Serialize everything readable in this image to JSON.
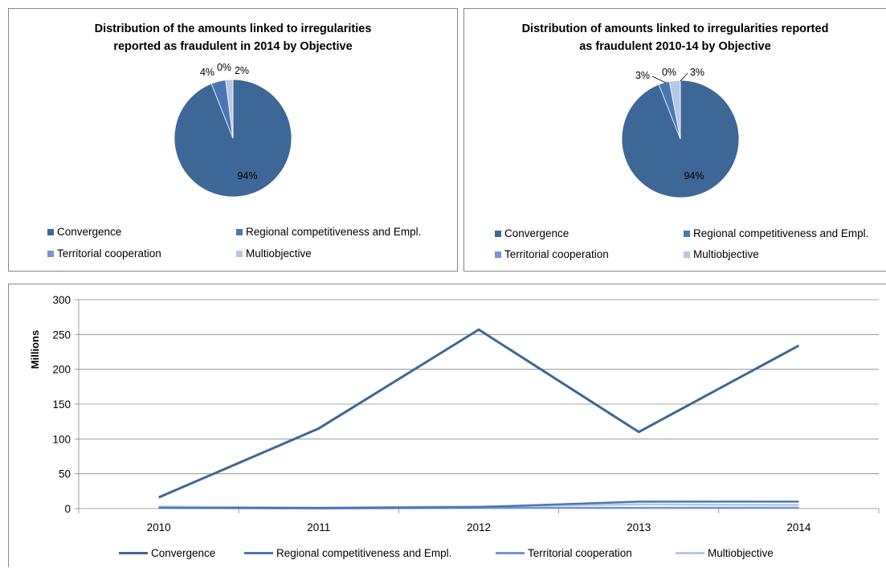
{
  "colors": {
    "convergence": "#3d6797",
    "regional": "#4a77b4",
    "territorial": "#7396cf",
    "multiobjective": "#b5c8e6"
  },
  "pie1": {
    "title_line1": "Distribution of the amounts linked to irregularities",
    "title_line2": "reported as fraudulent in 2014 by Objective"
  },
  "pie2": {
    "title_line1": "Distribution of amounts linked to irregularities reported",
    "title_line2": "as fraudulent 2010-14 by Objective"
  },
  "legend": {
    "convergence": "Convergence",
    "regional": "Regional competitiveness and Empl.",
    "territorial": "Territorial cooperation",
    "multiobjective": "Multiobjective"
  },
  "chart_data": [
    {
      "type": "pie",
      "title": "Distribution of the amounts linked to irregularities reported as fraudulent in 2014 by Objective",
      "categories": [
        "Convergence",
        "Regional competitiveness and Empl.",
        "Territorial cooperation",
        "Multiobjective"
      ],
      "values": [
        94,
        4,
        0,
        2
      ],
      "labels": [
        "94%",
        "4%",
        "0%",
        "2%"
      ]
    },
    {
      "type": "pie",
      "title": "Distribution of amounts linked to irregularities reported as fraudulent 2010-14 by Objective",
      "categories": [
        "Convergence",
        "Regional competitiveness and Empl.",
        "Territorial cooperation",
        "Multiobjective"
      ],
      "values": [
        94,
        3,
        0,
        3
      ],
      "labels": [
        "94%",
        "3%",
        "0%",
        "3%"
      ]
    },
    {
      "type": "line",
      "x": [
        "2010",
        "2011",
        "2012",
        "2013",
        "2014"
      ],
      "ylabel": "Millions",
      "ylim": [
        0,
        300
      ],
      "yticks": [
        0,
        50,
        100,
        150,
        200,
        250,
        300
      ],
      "grid": true,
      "legend": "bottom",
      "series": [
        {
          "name": "Convergence",
          "values": [
            16,
            115,
            257,
            110,
            234
          ]
        },
        {
          "name": "Regional competitiveness and Empl.",
          "values": [
            1,
            1,
            2,
            10,
            10
          ]
        },
        {
          "name": "Territorial cooperation",
          "values": [
            1,
            0,
            1,
            1,
            1
          ]
        },
        {
          "name": "Multiobjective",
          "values": [
            3,
            1,
            3,
            6,
            5
          ]
        }
      ]
    }
  ]
}
